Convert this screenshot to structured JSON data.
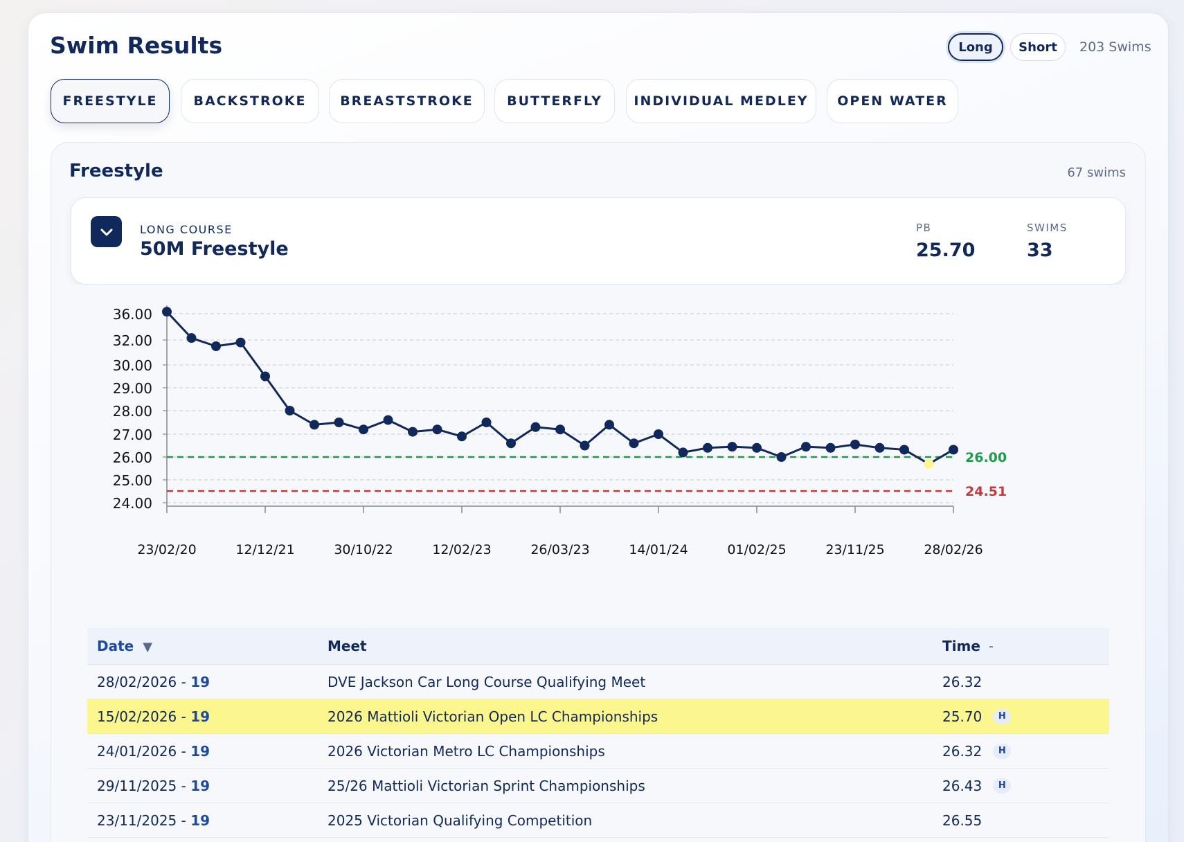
{
  "header": {
    "title": "Swim Results",
    "course_long": "Long",
    "course_short": "Short",
    "total_swims": "203 Swims"
  },
  "tabs": [
    "FREESTYLE",
    "BACKSTROKE",
    "BREASTSTROKE",
    "BUTTERFLY",
    "INDIVIDUAL MEDLEY",
    "OPEN WATER"
  ],
  "section": {
    "title": "Freestyle",
    "count": "67 swims"
  },
  "event": {
    "course": "LONG COURSE",
    "name": "50M Freestyle",
    "pb_label": "PB",
    "pb_value": "25.70",
    "swims_label": "SWIMS",
    "swims_value": "33"
  },
  "chart_data": {
    "type": "line",
    "y_ticks": [
      "36.00",
      "32.00",
      "30.00",
      "29.00",
      "28.00",
      "27.00",
      "26.00",
      "25.00",
      "24.00"
    ],
    "x_ticks": [
      "23/02/20",
      "12/12/21",
      "30/10/22",
      "12/02/23",
      "26/03/23",
      "14/01/24",
      "01/02/25",
      "23/11/25",
      "28/02/26"
    ],
    "values": [
      36.3,
      32.3,
      31.5,
      31.8,
      29.5,
      28.0,
      27.4,
      27.5,
      27.2,
      27.6,
      27.1,
      27.2,
      26.9,
      27.5,
      26.6,
      27.3,
      27.2,
      26.5,
      27.4,
      26.6,
      27.0,
      26.2,
      26.4,
      26.45,
      26.4,
      26.0,
      26.45,
      26.4,
      26.55,
      26.4,
      26.32,
      25.7,
      26.32
    ],
    "highlight_index": 31,
    "reference_lines": [
      {
        "value": 26.0,
        "label": "26.00",
        "color": "#1f9a4a"
      },
      {
        "value": 24.51,
        "label": "24.51",
        "color": "#c23b3b"
      }
    ],
    "line_color": "#10285a",
    "highlight_color": "#fbf78e"
  },
  "table": {
    "headers": {
      "date": "Date",
      "sort_icon": "▼",
      "meet": "Meet",
      "time": "Time",
      "time_sort": "-"
    },
    "rows": [
      {
        "date": "28/02/2026",
        "sep": "-",
        "age": "19",
        "meet": "DVE Jackson Car Long Course Qualifying Meet",
        "time": "26.32",
        "badge": ""
      },
      {
        "date": "15/02/2026",
        "sep": "-",
        "age": "19",
        "meet": "2026 Mattioli Victorian Open LC Championships",
        "time": "25.70",
        "badge": "H"
      },
      {
        "date": "24/01/2026",
        "sep": "-",
        "age": "19",
        "meet": "2026 Victorian Metro LC Championships",
        "time": "26.32",
        "badge": "H"
      },
      {
        "date": "29/11/2025",
        "sep": "-",
        "age": "19",
        "meet": "25/26 Mattioli Victorian Sprint Championships",
        "time": "26.43",
        "badge": "H"
      },
      {
        "date": "23/11/2025",
        "sep": "-",
        "age": "19",
        "meet": "2025 Victorian Qualifying Competition",
        "time": "26.55",
        "badge": ""
      }
    ]
  }
}
